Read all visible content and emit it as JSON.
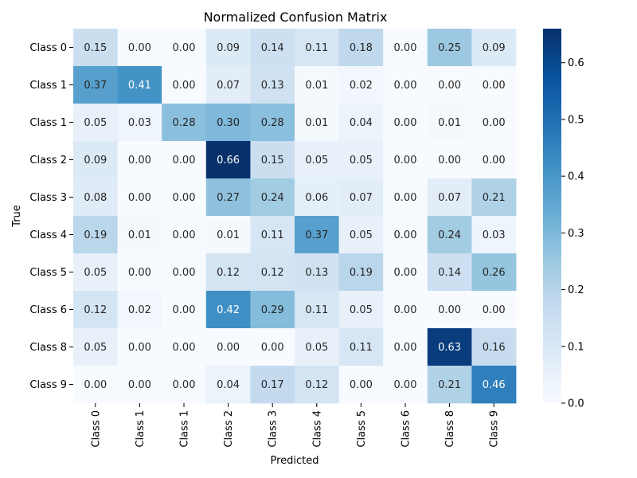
{
  "chart_data": {
    "type": "heatmap",
    "title": "Normalized Confusion Matrix",
    "xlabel": "Predicted",
    "ylabel": "True",
    "row_labels": [
      "Class 0",
      "Class 1",
      "Class 1",
      "Class 2",
      "Class 3",
      "Class 4",
      "Class 5",
      "Class 6",
      "Class 8",
      "Class 9"
    ],
    "col_labels": [
      "Class 0",
      "Class 1",
      "Class 1",
      "Class 2",
      "Class 3",
      "Class 4",
      "Class 5",
      "Class 6",
      "Class 8",
      "Class 9"
    ],
    "values": [
      [
        0.15,
        0.0,
        0.0,
        0.09,
        0.14,
        0.11,
        0.18,
        0.0,
        0.25,
        0.09
      ],
      [
        0.37,
        0.41,
        0.0,
        0.07,
        0.13,
        0.01,
        0.02,
        0.0,
        0.0,
        0.0
      ],
      [
        0.05,
        0.03,
        0.28,
        0.3,
        0.28,
        0.01,
        0.04,
        0.0,
        0.01,
        0.0
      ],
      [
        0.09,
        0.0,
        0.0,
        0.66,
        0.15,
        0.05,
        0.05,
        0.0,
        0.0,
        0.0
      ],
      [
        0.08,
        0.0,
        0.0,
        0.27,
        0.24,
        0.06,
        0.07,
        0.0,
        0.07,
        0.21
      ],
      [
        0.19,
        0.01,
        0.0,
        0.01,
        0.11,
        0.37,
        0.05,
        0.0,
        0.24,
        0.03
      ],
      [
        0.05,
        0.0,
        0.0,
        0.12,
        0.12,
        0.13,
        0.19,
        0.0,
        0.14,
        0.26
      ],
      [
        0.12,
        0.02,
        0.0,
        0.42,
        0.29,
        0.11,
        0.05,
        0.0,
        0.0,
        0.0
      ],
      [
        0.05,
        0.0,
        0.0,
        0.0,
        0.0,
        0.05,
        0.11,
        0.0,
        0.63,
        0.16
      ],
      [
        0.0,
        0.0,
        0.0,
        0.04,
        0.17,
        0.12,
        0.0,
        0.0,
        0.21,
        0.46
      ]
    ],
    "colormap": "Blues",
    "vmin": 0.0,
    "vmax": 0.66,
    "colorbar_ticks": [
      "0.0",
      "0.1",
      "0.2",
      "0.3",
      "0.4",
      "0.5",
      "0.6"
    ],
    "colorbar_tick_values": [
      0.0,
      0.1,
      0.2,
      0.3,
      0.4,
      0.5,
      0.6
    ],
    "grid": false
  }
}
